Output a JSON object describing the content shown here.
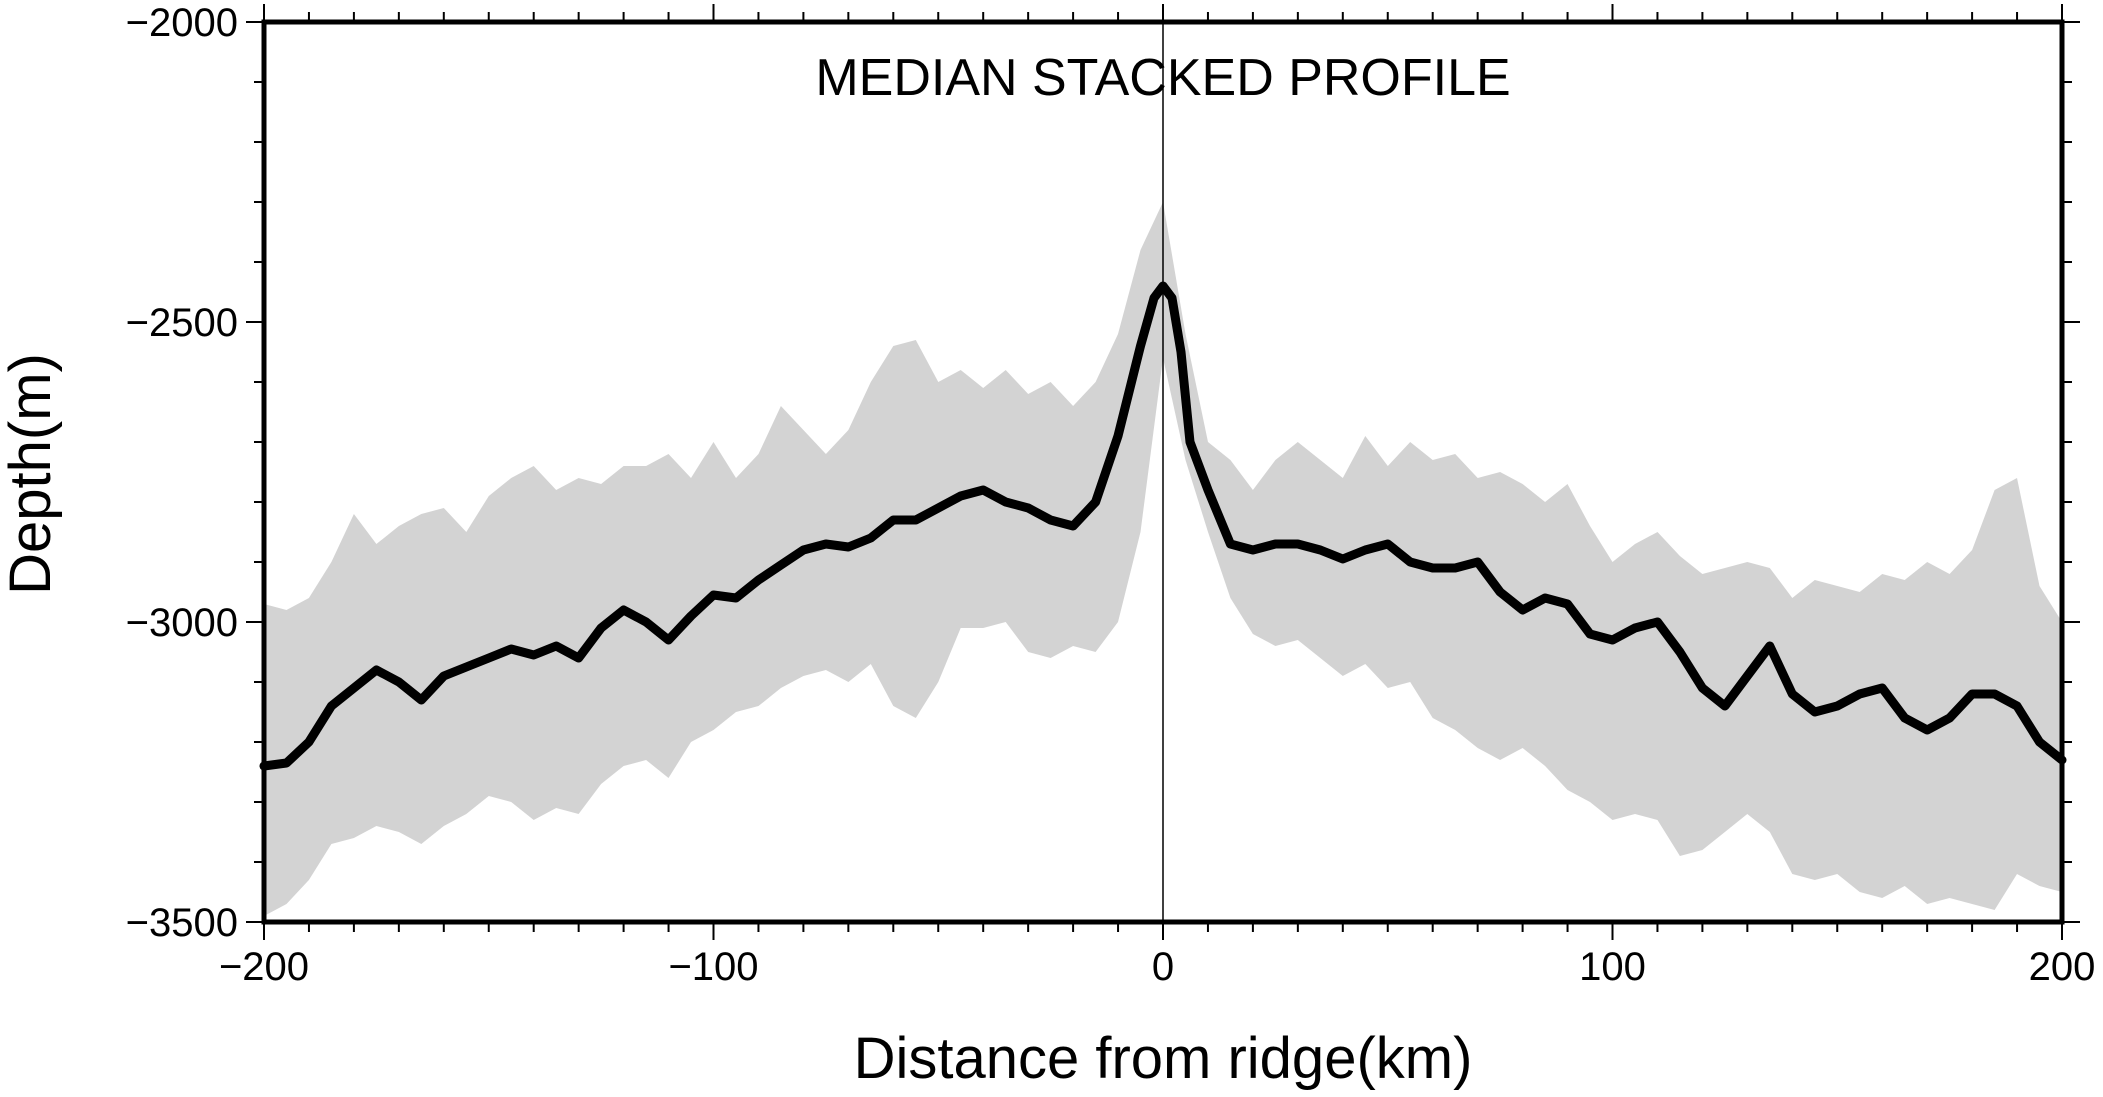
{
  "chart_data": {
    "type": "line",
    "title": "MEDIAN STACKED PROFILE",
    "xlabel": "Distance from ridge(km)",
    "ylabel": "Depth(m)",
    "xlim": [
      -200,
      200
    ],
    "ylim": [
      -3500,
      -2000
    ],
    "x_major_ticks": [
      -200,
      -100,
      0,
      100,
      200
    ],
    "x_tick_labels": [
      "−200",
      "−100",
      "0",
      "100",
      "200"
    ],
    "x_minor_step": 10,
    "y_major_ticks": [
      -2000,
      -2500,
      -3000,
      -3500
    ],
    "y_tick_labels": [
      "−2000",
      "−2500",
      "−3000",
      "−3500"
    ],
    "y_minor_step": 100,
    "ridge_line_x": 0,
    "colors": {
      "median": "#000000",
      "envelope": "#d3d3d3",
      "frame": "#000000"
    },
    "series": [
      {
        "name": "median",
        "x": [
          -200,
          -195,
          -190,
          -185,
          -180,
          -175,
          -170,
          -165,
          -160,
          -155,
          -150,
          -145,
          -140,
          -135,
          -130,
          -125,
          -120,
          -115,
          -110,
          -105,
          -100,
          -95,
          -90,
          -85,
          -80,
          -75,
          -70,
          -65,
          -60,
          -55,
          -50,
          -45,
          -40,
          -35,
          -30,
          -25,
          -20,
          -15,
          -10,
          -5,
          -2,
          0,
          2,
          4,
          6,
          10,
          15,
          20,
          25,
          30,
          35,
          40,
          45,
          50,
          55,
          60,
          65,
          70,
          75,
          80,
          85,
          90,
          95,
          100,
          105,
          110,
          115,
          120,
          125,
          130,
          133,
          135,
          140,
          145,
          150,
          155,
          160,
          165,
          170,
          175,
          180,
          185,
          190,
          195,
          200
        ],
        "y": [
          -3240,
          -3235,
          -3200,
          -3140,
          -3110,
          -3080,
          -3100,
          -3130,
          -3090,
          -3075,
          -3060,
          -3045,
          -3055,
          -3040,
          -3060,
          -3010,
          -2980,
          -3000,
          -3030,
          -2990,
          -2955,
          -2960,
          -2930,
          -2905,
          -2880,
          -2870,
          -2875,
          -2860,
          -2830,
          -2830,
          -2810,
          -2790,
          -2780,
          -2800,
          -2810,
          -2830,
          -2840,
          -2800,
          -2690,
          -2540,
          -2460,
          -2440,
          -2460,
          -2550,
          -2700,
          -2780,
          -2870,
          -2880,
          -2870,
          -2870,
          -2880,
          -2895,
          -2880,
          -2870,
          -2900,
          -2910,
          -2910,
          -2900,
          -2950,
          -2980,
          -2960,
          -2970,
          -3020,
          -3030,
          -3010,
          -3000,
          -3050,
          -3110,
          -3140,
          -3090,
          -3060,
          -3040,
          -3120,
          -3150,
          -3140,
          -3120,
          -3110,
          -3160,
          -3180,
          -3160,
          -3120,
          -3120,
          -3140,
          -3200,
          -3230
        ]
      },
      {
        "name": "envelope_upper",
        "x": [
          -200,
          -195,
          -190,
          -185,
          -180,
          -175,
          -170,
          -165,
          -160,
          -155,
          -150,
          -145,
          -140,
          -135,
          -130,
          -125,
          -120,
          -115,
          -110,
          -105,
          -100,
          -95,
          -90,
          -85,
          -80,
          -75,
          -70,
          -65,
          -60,
          -55,
          -50,
          -45,
          -40,
          -35,
          -30,
          -25,
          -20,
          -15,
          -10,
          -5,
          0,
          5,
          10,
          15,
          20,
          25,
          30,
          35,
          40,
          45,
          50,
          55,
          60,
          65,
          70,
          75,
          80,
          85,
          90,
          95,
          100,
          105,
          110,
          115,
          120,
          125,
          130,
          135,
          140,
          145,
          150,
          155,
          160,
          165,
          170,
          175,
          180,
          185,
          190,
          195,
          200
        ],
        "y": [
          -2970,
          -2980,
          -2960,
          -2900,
          -2820,
          -2870,
          -2840,
          -2820,
          -2810,
          -2850,
          -2790,
          -2760,
          -2740,
          -2780,
          -2760,
          -2770,
          -2740,
          -2740,
          -2720,
          -2760,
          -2700,
          -2760,
          -2720,
          -2640,
          -2680,
          -2720,
          -2680,
          -2600,
          -2540,
          -2530,
          -2600,
          -2580,
          -2610,
          -2580,
          -2620,
          -2600,
          -2640,
          -2600,
          -2520,
          -2380,
          -2300,
          -2520,
          -2700,
          -2730,
          -2780,
          -2730,
          -2700,
          -2730,
          -2760,
          -2690,
          -2740,
          -2700,
          -2730,
          -2720,
          -2760,
          -2750,
          -2770,
          -2800,
          -2770,
          -2840,
          -2900,
          -2870,
          -2850,
          -2890,
          -2920,
          -2910,
          -2900,
          -2910,
          -2960,
          -2930,
          -2940,
          -2950,
          -2920,
          -2930,
          -2900,
          -2920,
          -2880,
          -2780,
          -2760,
          -2940,
          -3000
        ]
      },
      {
        "name": "envelope_lower",
        "x": [
          -200,
          -195,
          -190,
          -185,
          -180,
          -175,
          -170,
          -165,
          -160,
          -155,
          -150,
          -145,
          -140,
          -135,
          -130,
          -125,
          -120,
          -115,
          -110,
          -105,
          -100,
          -95,
          -90,
          -85,
          -80,
          -75,
          -70,
          -65,
          -60,
          -55,
          -50,
          -45,
          -40,
          -35,
          -30,
          -25,
          -20,
          -15,
          -10,
          -5,
          0,
          5,
          10,
          15,
          20,
          25,
          30,
          35,
          40,
          45,
          50,
          55,
          60,
          65,
          70,
          75,
          80,
          85,
          90,
          95,
          100,
          105,
          110,
          115,
          120,
          125,
          130,
          135,
          140,
          145,
          150,
          155,
          160,
          165,
          170,
          175,
          180,
          185,
          190,
          195,
          200
        ],
        "y": [
          -3490,
          -3470,
          -3430,
          -3370,
          -3360,
          -3340,
          -3350,
          -3370,
          -3340,
          -3320,
          -3290,
          -3300,
          -3330,
          -3310,
          -3320,
          -3270,
          -3240,
          -3230,
          -3260,
          -3200,
          -3180,
          -3150,
          -3140,
          -3110,
          -3090,
          -3080,
          -3100,
          -3070,
          -3140,
          -3160,
          -3100,
          -3010,
          -3010,
          -3000,
          -3050,
          -3060,
          -3040,
          -3050,
          -3000,
          -2850,
          -2560,
          -2730,
          -2850,
          -2960,
          -3020,
          -3040,
          -3030,
          -3060,
          -3090,
          -3070,
          -3110,
          -3100,
          -3160,
          -3180,
          -3210,
          -3230,
          -3210,
          -3240,
          -3280,
          -3300,
          -3330,
          -3320,
          -3330,
          -3390,
          -3380,
          -3350,
          -3320,
          -3350,
          -3420,
          -3430,
          -3420,
          -3450,
          -3460,
          -3440,
          -3470,
          -3460,
          -3470,
          -3480,
          -3420,
          -3440,
          -3450
        ]
      }
    ]
  }
}
